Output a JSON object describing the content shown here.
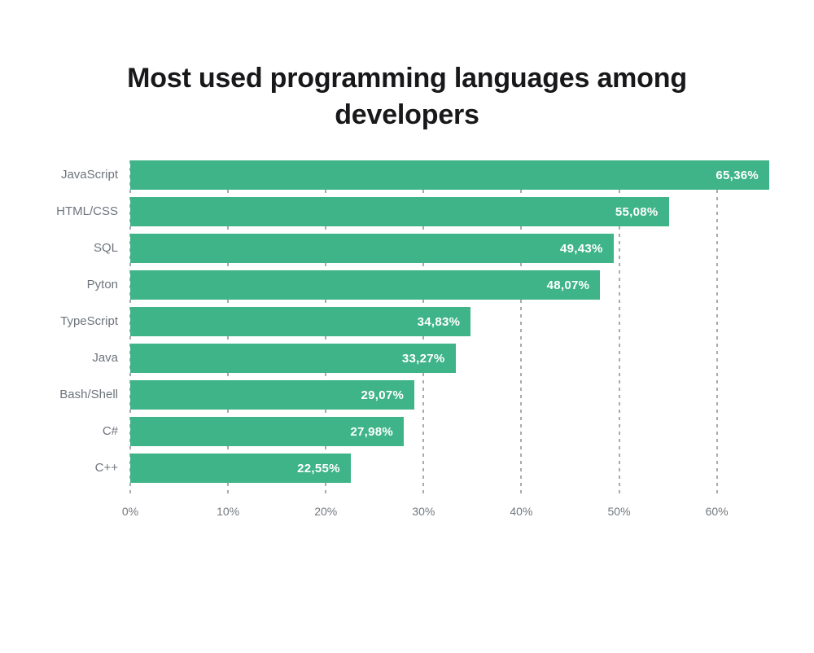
{
  "page": {
    "background": "#ffffff"
  },
  "chart_data": {
    "type": "bar",
    "orientation": "horizontal",
    "title": "Most used programming languages among developers",
    "title_lines": [
      "Most used programming languages among",
      "developers"
    ],
    "categories": [
      "JavaScript",
      "HTML/CSS",
      "SQL",
      "Pyton",
      "TypeScript",
      "Java",
      "Bash/Shell",
      "C#",
      "C++"
    ],
    "values": [
      65.36,
      55.08,
      49.43,
      48.07,
      34.83,
      33.27,
      29.07,
      27.98,
      22.55
    ],
    "value_labels": [
      "65,36%",
      "55,08%",
      "49,43%",
      "48,07%",
      "34,83%",
      "33,27%",
      "29,07%",
      "27,98%",
      "22,55%"
    ],
    "x_ticks": [
      {
        "label": "0%",
        "value": 0
      },
      {
        "label": "10%",
        "value": 10
      },
      {
        "label": "20%",
        "value": 20
      },
      {
        "label": "30%",
        "value": 30
      },
      {
        "label": "40%",
        "value": 40
      },
      {
        "label": "50%",
        "value": 50
      },
      {
        "label": "60%",
        "value": 60
      }
    ],
    "xlim": [
      0,
      65.36
    ],
    "xlabel": "",
    "ylabel": "",
    "legend": "none",
    "grid": "vertical-dashed",
    "bar_color": "#3eb488",
    "value_label_color": "#ffffff",
    "category_label_color": "#6e747c",
    "tick_label_color": "#72787f",
    "gridline_color": "#a6abb2",
    "title_color": "#18181a"
  }
}
